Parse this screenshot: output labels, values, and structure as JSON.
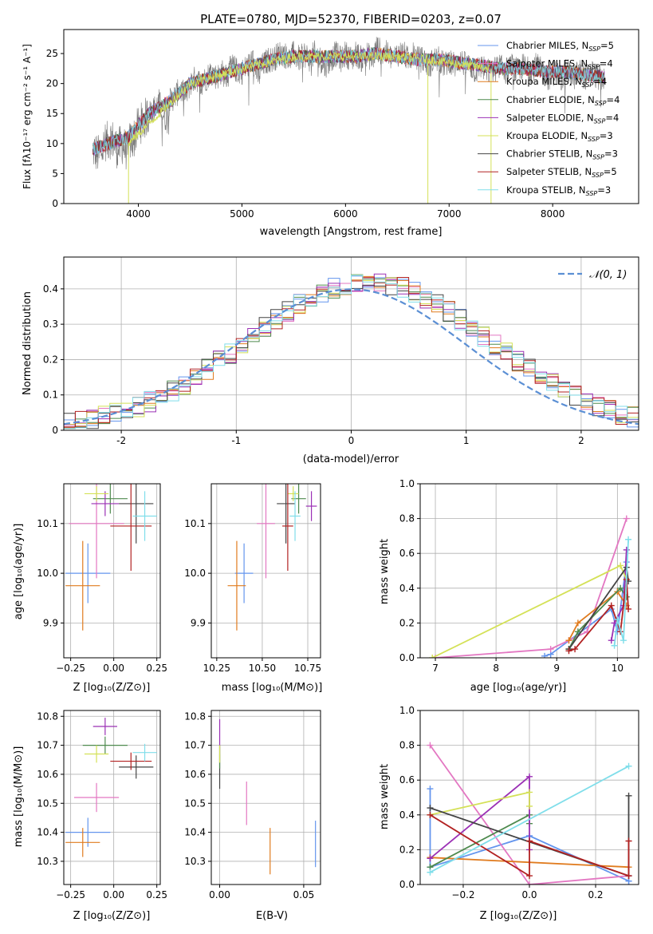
{
  "chart_data": [
    {
      "id": "spectrum",
      "type": "line",
      "title": "PLATE=0780, MJD=52370, FIBERID=0203, z=0.07",
      "xlabel": "wavelength [Angstrom, rest frame]",
      "ylabel": "Flux [fλ10⁻¹⁷ erg cm⁻² s⁻¹ A⁻¹]",
      "xlim": [
        3280,
        8830
      ],
      "ylim": [
        0,
        29
      ],
      "xticks": [
        4000,
        5000,
        6000,
        7000,
        8000
      ],
      "yticks": [
        0,
        5,
        10,
        15,
        20,
        25
      ],
      "legend_position": "upper-right",
      "data_color": "#777777",
      "data_segments": [
        {
          "x": [
            3560,
            3620,
            3680,
            3740,
            3800,
            3840,
            3880,
            3905
          ],
          "y": [
            9,
            8,
            10,
            11,
            9,
            10,
            9,
            8
          ]
        },
        {
          "x": [
            3905,
            3960,
            4000,
            4060,
            4100,
            4160,
            4200,
            4260,
            4300,
            4360,
            4400,
            4460,
            4500,
            4560,
            4600,
            4660,
            4700,
            4760,
            4800,
            4860,
            4900,
            4960,
            5000,
            5060,
            5100,
            5160,
            5200,
            5260,
            5300,
            5360,
            5400,
            5460,
            5500,
            5560,
            5600,
            5660,
            5700,
            5760,
            5800,
            5860,
            5900,
            5960,
            6000,
            6060,
            6100,
            6160,
            6200,
            6260,
            6300,
            6360,
            6400,
            6460,
            6500,
            6560,
            6600,
            6660,
            6700,
            6760,
            6800
          ],
          "y": [
            10,
            11,
            13,
            14,
            15,
            16,
            17,
            14,
            17,
            18,
            19,
            18,
            20,
            21,
            20,
            21,
            22,
            21,
            22,
            21,
            23,
            22,
            22,
            23,
            24,
            21,
            23,
            24,
            24,
            25,
            25,
            24,
            25,
            24,
            25,
            24,
            25,
            24,
            23,
            24,
            25,
            24,
            25,
            24,
            25,
            24,
            25,
            24,
            26,
            25,
            25,
            24,
            25,
            25,
            24,
            25,
            24,
            24,
            23
          ]
        },
        {
          "x": [
            6800,
            6860,
            6900,
            6960,
            7000,
            7060,
            7100,
            7160,
            7200,
            7260,
            7300,
            7360,
            7400
          ],
          "y": [
            23,
            24,
            24,
            23,
            24,
            23,
            24,
            23,
            23,
            22,
            23,
            22,
            22
          ]
        },
        {
          "x": [
            7420,
            7480,
            7540,
            7600,
            7660,
            7720,
            7780,
            7840,
            7900,
            7960,
            8020,
            8080,
            8140,
            8200,
            8260,
            8320,
            8380,
            8440,
            8500
          ],
          "y": [
            22,
            23,
            22,
            23,
            22,
            23,
            22,
            23,
            22,
            21,
            22,
            21,
            22,
            21,
            22,
            21,
            22,
            21,
            21
          ]
        }
      ],
      "series": [
        {
          "name": "Chabrier MILES, N_SSP=5",
          "color": "#6495ED"
        },
        {
          "name": "Salpeter MILES, N_SSP=4",
          "color": "#E377C2"
        },
        {
          "name": "Kroupa MILES, N_SSP=4",
          "color": "#E07B1E"
        },
        {
          "name": "Chabrier ELODIE, N_SSP=4",
          "color": "#4E8A4E"
        },
        {
          "name": "Salpeter ELODIE, N_SSP=4",
          "color": "#9B30B5"
        },
        {
          "name": "Kroupa ELODIE, N_SSP=3",
          "color": "#D4E157"
        },
        {
          "name": "Chabrier STELIB, N_SSP=3",
          "color": "#444444"
        },
        {
          "name": "Salpeter STELIB, N_SSP=5",
          "color": "#B22222"
        },
        {
          "name": "Kroupa STELIB, N_SSP=3",
          "color": "#80DEEA"
        }
      ],
      "model_line": {
        "x": [
          3560,
          3700,
          3900,
          4100,
          4300,
          4500,
          4700,
          4900,
          5100,
          5300,
          5500,
          5700,
          5900,
          6100,
          6300,
          6500,
          6700,
          6900,
          7100,
          7300,
          7500,
          7700,
          7900,
          8100,
          8300,
          8500
        ],
        "y": [
          9,
          10,
          11,
          15,
          17,
          20,
          21,
          22,
          23,
          24,
          24.5,
          24.5,
          24.5,
          24.5,
          25,
          24.5,
          24,
          24,
          23.5,
          23,
          22.5,
          22.5,
          22,
          22,
          21.5,
          21
        ]
      },
      "kroupa_elodie_model": {
        "x": [
          3905,
          4500,
          5000,
          5500,
          6000,
          6500,
          6800,
          7000,
          7400
        ],
        "y": [
          10,
          20,
          22.5,
          24.5,
          24.5,
          24.5,
          24,
          23.5,
          22.5
        ]
      },
      "kroupa_elodie_dips": [
        3905,
        6795,
        7405
      ]
    },
    {
      "id": "residuals",
      "type": "histogram",
      "xlabel": "(data-model)/error",
      "ylabel": "Normed distribution",
      "xlim": [
        -2.5,
        2.5
      ],
      "ylim": [
        0,
        0.49
      ],
      "xticks": [
        -2,
        -1,
        0,
        1,
        2
      ],
      "yticks": [
        0.0,
        0.1,
        0.2,
        0.3,
        0.4
      ],
      "grid": true,
      "legend_position": "upper-right",
      "gaussian_label": "𝒩(0, 1)",
      "gaussian_color": "#5B8FD4",
      "bin_width": 0.1
    },
    {
      "id": "age-vs-Z",
      "type": "errorbar",
      "xlabel": "Z [log₁₀(Z/Z⊙)]",
      "ylabel": "age  [log₁₀(age/yr)]",
      "xlim": [
        -0.29,
        0.27
      ],
      "ylim": [
        9.83,
        10.18
      ],
      "xticks": [
        -0.25,
        0.0,
        0.25
      ],
      "xticklabels": [
        "−0.25",
        "0.00",
        "0.25"
      ],
      "yticks": [
        9.9,
        10.0,
        10.1
      ],
      "yticklabels": [
        "9.9",
        "10.0",
        "10.1"
      ],
      "grid": true,
      "points": [
        {
          "color": "#6495ED",
          "x": -0.15,
          "xerr": 0.13,
          "y": 10.0,
          "yerr": 0.06
        },
        {
          "color": "#E377C2",
          "x": -0.1,
          "xerr": 0.16,
          "y": 10.1,
          "yerr": 0.11
        },
        {
          "color": "#E07B1E",
          "x": -0.18,
          "xerr": 0.1,
          "y": 9.975,
          "yerr": 0.09
        },
        {
          "color": "#4E8A4E",
          "x": -0.02,
          "xerr": 0.1,
          "y": 10.15,
          "yerr": 0.03
        },
        {
          "color": "#9B30B5",
          "x": -0.05,
          "xerr": 0.08,
          "y": 10.14,
          "yerr": 0.025
        },
        {
          "color": "#D4E157",
          "x": -0.1,
          "xerr": 0.07,
          "y": 10.16,
          "yerr": 0.015
        },
        {
          "color": "#444444",
          "x": 0.13,
          "xerr": 0.1,
          "y": 10.14,
          "yerr": 0.08
        },
        {
          "color": "#B22222",
          "x": 0.1,
          "xerr": 0.12,
          "y": 10.095,
          "yerr": 0.09
        },
        {
          "color": "#80DEEA",
          "x": 0.18,
          "xerr": 0.07,
          "y": 10.115,
          "yerr": 0.05
        }
      ]
    },
    {
      "id": "age-vs-mass",
      "type": "errorbar",
      "xlabel": "mass [log₁₀(M/M⊙)]",
      "ylabel": "",
      "xlim": [
        10.22,
        10.82
      ],
      "ylim": [
        9.83,
        10.18
      ],
      "xticks": [
        10.25,
        10.5,
        10.75
      ],
      "xticklabels": [
        "10.25",
        "10.50",
        "10.75"
      ],
      "yticks": [
        9.9,
        10.0,
        10.1
      ],
      "yticklabels": [
        "9.9",
        "10.0",
        "10.1"
      ],
      "grid": true,
      "points": [
        {
          "color": "#6495ED",
          "x": 10.4,
          "xerr": 0.05,
          "y": 10.0,
          "yerr": 0.06
        },
        {
          "color": "#E377C2",
          "x": 10.52,
          "xerr": 0.05,
          "y": 10.1,
          "yerr": 0.11
        },
        {
          "color": "#E07B1E",
          "x": 10.36,
          "xerr": 0.05,
          "y": 9.975,
          "yerr": 0.09
        },
        {
          "color": "#4E8A4E",
          "x": 10.7,
          "xerr": 0.04,
          "y": 10.15,
          "yerr": 0.03
        },
        {
          "color": "#9B30B5",
          "x": 10.77,
          "xerr": 0.03,
          "y": 10.135,
          "yerr": 0.03
        },
        {
          "color": "#D4E157",
          "x": 10.67,
          "xerr": 0.03,
          "y": 10.16,
          "yerr": 0.015
        },
        {
          "color": "#444444",
          "x": 10.63,
          "xerr": 0.05,
          "y": 10.14,
          "yerr": 0.08
        },
        {
          "color": "#B22222",
          "x": 10.64,
          "xerr": 0.03,
          "y": 10.095,
          "yerr": 0.09
        },
        {
          "color": "#80DEEA",
          "x": 10.68,
          "xerr": 0.03,
          "y": 10.115,
          "yerr": 0.05
        }
      ]
    },
    {
      "id": "mass-weight-vs-age",
      "type": "line",
      "xlabel": "age  [log₁₀(age/yr)]",
      "ylabel": "mass weight",
      "xlim": [
        6.75,
        10.35
      ],
      "ylim": [
        0,
        1
      ],
      "xticks": [
        7,
        8,
        9,
        10
      ],
      "xticklabels": [
        "7",
        "8",
        "9",
        "10"
      ],
      "yticks": [
        0,
        0.2,
        0.4,
        0.6,
        0.8,
        1.0
      ],
      "yticklabels": [
        "0.0",
        "0.2",
        "0.4",
        "0.6",
        "0.8",
        "1.0"
      ],
      "grid": true,
      "series": [
        {
          "color": "#6495ED",
          "x": [
            8.8,
            8.9,
            9.9,
            10.0,
            10.15
          ],
          "y": [
            0.01,
            0.02,
            0.28,
            0.15,
            0.55
          ]
        },
        {
          "color": "#E377C2",
          "x": [
            7.0,
            8.9,
            9.2,
            9.5,
            10.15
          ],
          "y": [
            0.0,
            0.05,
            0.1,
            0.15,
            0.8
          ]
        },
        {
          "color": "#E07B1E",
          "x": [
            9.2,
            9.35,
            10.0,
            10.15
          ],
          "y": [
            0.1,
            0.2,
            0.38,
            0.3
          ]
        },
        {
          "color": "#4E8A4E",
          "x": [
            9.2,
            9.35,
            10.05,
            10.15
          ],
          "y": [
            0.05,
            0.15,
            0.4,
            0.35
          ]
        },
        {
          "color": "#9B30B5",
          "x": [
            9.9,
            9.95,
            10.1,
            10.15
          ],
          "y": [
            0.1,
            0.2,
            0.3,
            0.62
          ]
        },
        {
          "color": "#D4E157",
          "x": [
            6.95,
            10.05,
            10.15
          ],
          "y": [
            0.0,
            0.53,
            0.45
          ]
        },
        {
          "color": "#444444",
          "x": [
            9.2,
            10.15,
            10.18
          ],
          "y": [
            0.05,
            0.52,
            0.44
          ]
        },
        {
          "color": "#B22222",
          "x": [
            9.2,
            9.3,
            9.9,
            10.05,
            10.15,
            10.18
          ],
          "y": [
            0.04,
            0.05,
            0.3,
            0.15,
            0.45,
            0.28
          ]
        },
        {
          "color": "#80DEEA",
          "x": [
            9.95,
            10.0,
            10.1,
            10.18
          ],
          "y": [
            0.07,
            0.22,
            0.1,
            0.68
          ]
        }
      ]
    },
    {
      "id": "mass-vs-Z",
      "type": "errorbar",
      "xlabel": "Z [log₁₀(Z/Z⊙)]",
      "ylabel": "mass [log₁₀(M/M⊙)]",
      "xlim": [
        -0.29,
        0.27
      ],
      "ylim": [
        10.22,
        10.82
      ],
      "xticks": [
        -0.25,
        0.0,
        0.25
      ],
      "xticklabels": [
        "−0.25",
        "0.00",
        "0.25"
      ],
      "yticks": [
        10.3,
        10.4,
        10.5,
        10.6,
        10.7,
        10.8
      ],
      "yticklabels": [
        "10.3",
        "10.4",
        "10.5",
        "10.6",
        "10.7",
        "10.8"
      ],
      "grid": true,
      "points": [
        {
          "color": "#6495ED",
          "x": -0.15,
          "xerr": 0.13,
          "y": 10.4,
          "yerr": 0.05
        },
        {
          "color": "#E377C2",
          "x": -0.1,
          "xerr": 0.13,
          "y": 10.52,
          "yerr": 0.05
        },
        {
          "color": "#E07B1E",
          "x": -0.18,
          "xerr": 0.1,
          "y": 10.365,
          "yerr": 0.05
        },
        {
          "color": "#4E8A4E",
          "x": -0.05,
          "xerr": 0.13,
          "y": 10.7,
          "yerr": 0.03
        },
        {
          "color": "#9B30B5",
          "x": -0.05,
          "xerr": 0.07,
          "y": 10.765,
          "yerr": 0.03
        },
        {
          "color": "#D4E157",
          "x": -0.1,
          "xerr": 0.07,
          "y": 10.67,
          "yerr": 0.03
        },
        {
          "color": "#444444",
          "x": 0.13,
          "xerr": 0.1,
          "y": 10.625,
          "yerr": 0.04
        },
        {
          "color": "#B22222",
          "x": 0.1,
          "xerr": 0.12,
          "y": 10.645,
          "yerr": 0.03
        },
        {
          "color": "#80DEEA",
          "x": 0.18,
          "xerr": 0.07,
          "y": 10.675,
          "yerr": 0.03
        }
      ]
    },
    {
      "id": "mass-vs-ebv",
      "type": "errorbar",
      "xlabel": "E(B-V)",
      "ylabel": "",
      "xlim": [
        -0.005,
        0.06
      ],
      "ylim": [
        10.22,
        10.82
      ],
      "xticks": [
        0.0,
        0.05
      ],
      "xticklabels": [
        "0.00",
        "0.05"
      ],
      "yticks": [
        10.3,
        10.4,
        10.5,
        10.6,
        10.7,
        10.8
      ],
      "yticklabels": [
        "10.3",
        "10.4",
        "10.5",
        "10.6",
        "10.7",
        "10.8"
      ],
      "grid": true,
      "points": [
        {
          "color": "#6495ED",
          "x": 0.057,
          "xerr": 0,
          "y": 10.36,
          "yerr": 0.08
        },
        {
          "color": "#E377C2",
          "x": 0.016,
          "xerr": 0,
          "y": 10.5,
          "yerr": 0.075
        },
        {
          "color": "#E07B1E",
          "x": 0.03,
          "xerr": 0,
          "y": 10.335,
          "yerr": 0.08
        },
        {
          "color": "#9B30B5",
          "x": 0.0,
          "xerr": 0,
          "y": 10.73,
          "yerr": 0.06
        },
        {
          "color": "#444444",
          "x": 0.0,
          "xerr": 0,
          "y": 10.61,
          "yerr": 0.06
        },
        {
          "color": "#4E8A4E",
          "x": 0.0,
          "xerr": 0,
          "y": 10.66,
          "yerr": 0.04
        },
        {
          "color": "#D4E157",
          "x": 0.0,
          "xerr": 0,
          "y": 10.67,
          "yerr": 0.03
        }
      ]
    },
    {
      "id": "mass-weight-vs-Z",
      "type": "line",
      "xlabel": "Z [log₁₀(Z/Z⊙)]",
      "ylabel": "mass weight",
      "xlim": [
        -0.33,
        0.33
      ],
      "ylim": [
        0,
        1
      ],
      "xticks": [
        -0.2,
        0.0,
        0.2
      ],
      "xticklabels": [
        "−0.2",
        "0.0",
        "0.2"
      ],
      "yticks": [
        0,
        0.2,
        0.4,
        0.6,
        0.8,
        1.0
      ],
      "yticklabels": [
        "0.0",
        "0.2",
        "0.4",
        "0.6",
        "0.8",
        "1.0"
      ],
      "grid": true,
      "series": [
        {
          "color": "#6495ED",
          "x": [
            -0.3,
            -0.3,
            0.0,
            0.3,
            0.3
          ],
          "y": [
            0.55,
            0.1,
            0.28,
            0.02,
            0.02
          ]
        },
        {
          "color": "#E377C2",
          "x": [
            -0.3,
            0.0,
            0.3
          ],
          "y": [
            0.8,
            0.0,
            0.05
          ]
        },
        {
          "color": "#E07B1E",
          "x": [
            -0.3,
            0.3
          ],
          "y": [
            0.155,
            0.1
          ]
        },
        {
          "color": "#4E8A4E",
          "x": [
            -0.3,
            0.0,
            0.0
          ],
          "y": [
            0.1,
            0.4,
            0.35
          ]
        },
        {
          "color": "#9B30B5",
          "x": [
            -0.3,
            0.0,
            0.0
          ],
          "y": [
            0.15,
            0.62,
            0.2
          ]
        },
        {
          "color": "#D4E157",
          "x": [
            -0.3,
            0.0,
            0.0
          ],
          "y": [
            0.4,
            0.53,
            0.45
          ]
        },
        {
          "color": "#444444",
          "x": [
            -0.3,
            0.3,
            0.3
          ],
          "y": [
            0.44,
            0.05,
            0.51
          ]
        },
        {
          "color": "#B22222",
          "x": [
            -0.3,
            0.0,
            0.0,
            0.3,
            0.3
          ],
          "y": [
            0.4,
            0.05,
            0.25,
            0.05,
            0.25
          ]
        },
        {
          "color": "#80DEEA",
          "x": [
            -0.3,
            0.3
          ],
          "y": [
            0.07,
            0.68
          ]
        }
      ]
    }
  ]
}
